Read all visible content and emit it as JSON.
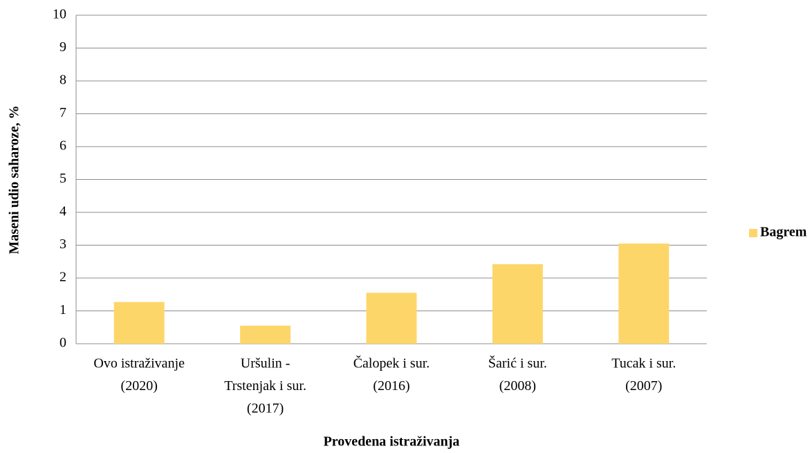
{
  "chart_data": {
    "type": "bar",
    "y_label": "Maseni udio saharoze, %",
    "x_label": "Provedena istraživanja",
    "categories": [
      [
        "Ovo istraživanje",
        "(2020)"
      ],
      [
        "Uršulin -",
        "Trstenjak i sur.",
        "(2017)"
      ],
      [
        "Čalopek i sur.",
        "(2016)"
      ],
      [
        "Šarić i sur.",
        "(2008)"
      ],
      [
        "Tucak i sur.",
        "(2007)"
      ]
    ],
    "series": [
      {
        "name": "Bagrem",
        "color": "#fdd66a",
        "values": [
          1.27,
          0.55,
          1.55,
          2.42,
          3.05
        ]
      }
    ],
    "ylim": [
      0,
      10
    ],
    "yticks": [
      0,
      1,
      2,
      3,
      4,
      5,
      6,
      7,
      8,
      9,
      10
    ],
    "grid": true,
    "legend": "right"
  }
}
